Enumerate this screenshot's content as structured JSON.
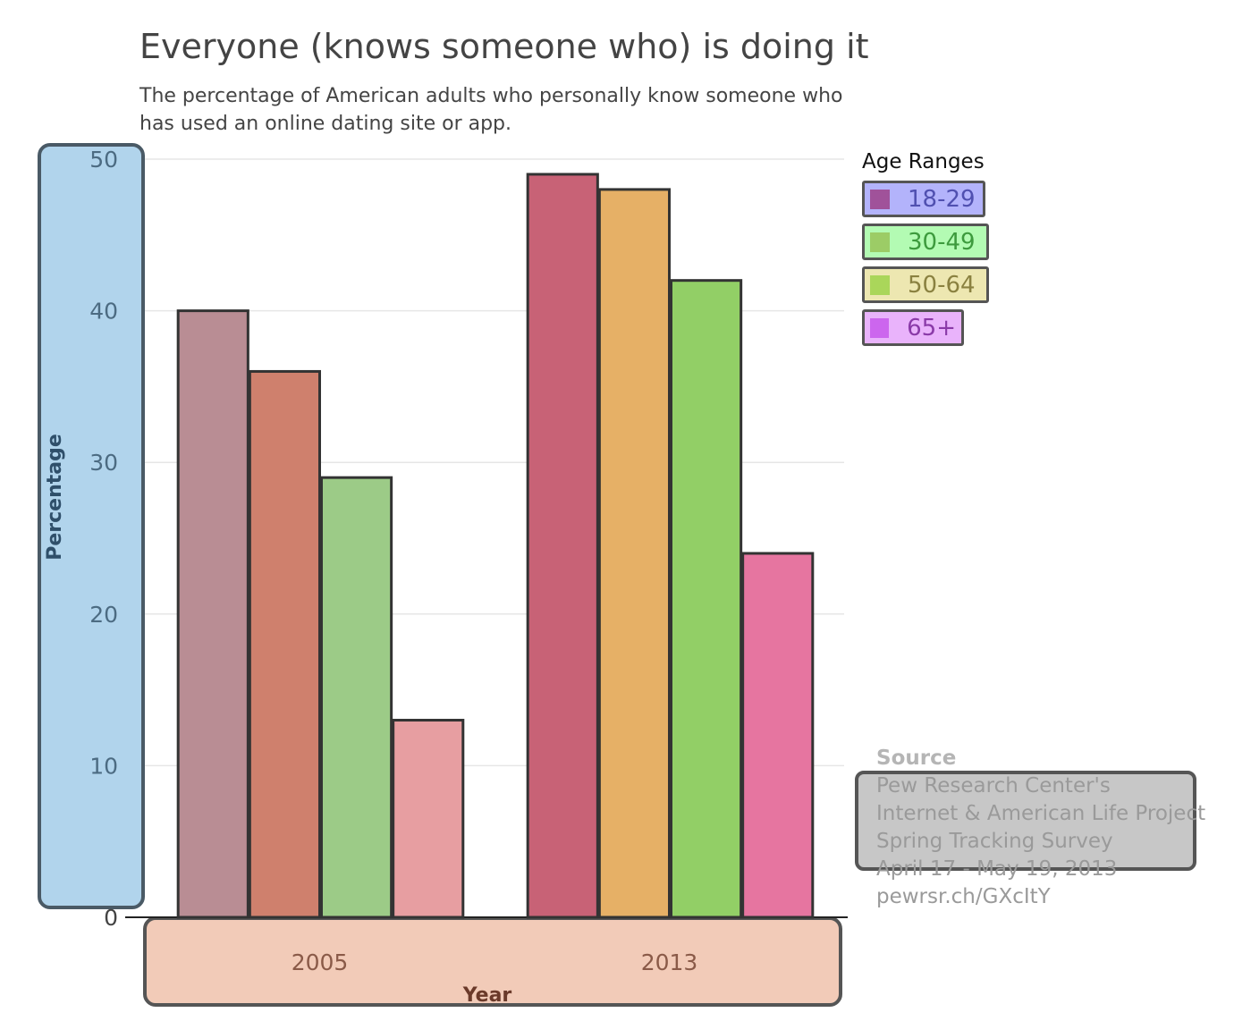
{
  "title": "Everyone (knows someone who) is doing it",
  "subtitle": "The percentage of American adults who personally know someone who has used an online dating site or app.",
  "legend": {
    "title": "Age Ranges",
    "items": [
      {
        "label": "18-29",
        "swatch": "#a0529a",
        "bg": "#b3b3fb",
        "text": "#5050b0"
      },
      {
        "label": "30-49",
        "swatch": "#9ccc66",
        "bg": "#b3fbb3",
        "text": "#3d9a3d"
      },
      {
        "label": "50-64",
        "swatch": "#aad65a",
        "bg": "#ede7b1",
        "text": "#8a8140"
      },
      {
        "label": "65+",
        "swatch": "#cc66ee",
        "bg": "#e9b3fb",
        "text": "#8a3aa8"
      }
    ]
  },
  "source": {
    "heading": "Source",
    "lines": [
      "Pew Research Center's",
      "Internet & American Life Project",
      "Spring Tracking Survey",
      "April 17 - May 19, 2013",
      "pewrsr.ch/GXcItY"
    ]
  },
  "chart_data": {
    "type": "bar",
    "categories": [
      "2005",
      "2013"
    ],
    "series": [
      {
        "name": "18-29",
        "values": [
          40,
          49
        ],
        "colors": [
          "#b98d94",
          "#c86276"
        ]
      },
      {
        "name": "30-49",
        "values": [
          36,
          48
        ],
        "colors": [
          "#cf806d",
          "#e6b066"
        ]
      },
      {
        "name": "50-64",
        "values": [
          29,
          42
        ],
        "colors": [
          "#9ccb87",
          "#92cf66"
        ]
      },
      {
        "name": "65+",
        "values": [
          13,
          24
        ],
        "colors": [
          "#e79ea1",
          "#e675a0"
        ]
      }
    ],
    "xlabel": "Year",
    "ylabel": "Percentage",
    "ylim": [
      0,
      50
    ],
    "yticks": [
      0,
      10,
      20,
      30,
      40,
      50
    ],
    "grid": true,
    "legend_position": "right"
  }
}
